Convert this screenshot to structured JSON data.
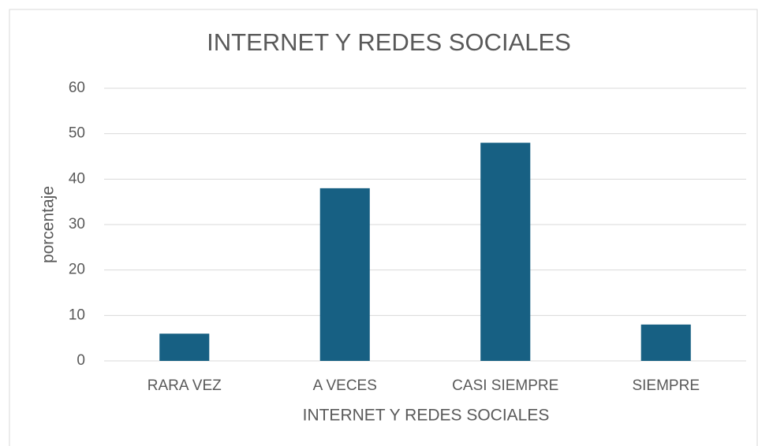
{
  "chart_data": {
    "type": "bar",
    "title": "INTERNET Y REDES SOCIALES",
    "x_label": "INTERNET Y REDES SOCIALES",
    "y_label": "porcentaje",
    "categories": [
      "RARA VEZ",
      "A VECES",
      "CASI SIEMPRE",
      "SIEMPRE"
    ],
    "values": [
      6,
      38,
      48,
      8
    ],
    "color": "#176083",
    "ylim": [
      0,
      60
    ],
    "yticks": [
      0,
      10,
      20,
      30,
      40,
      50,
      60
    ],
    "grid": true
  }
}
